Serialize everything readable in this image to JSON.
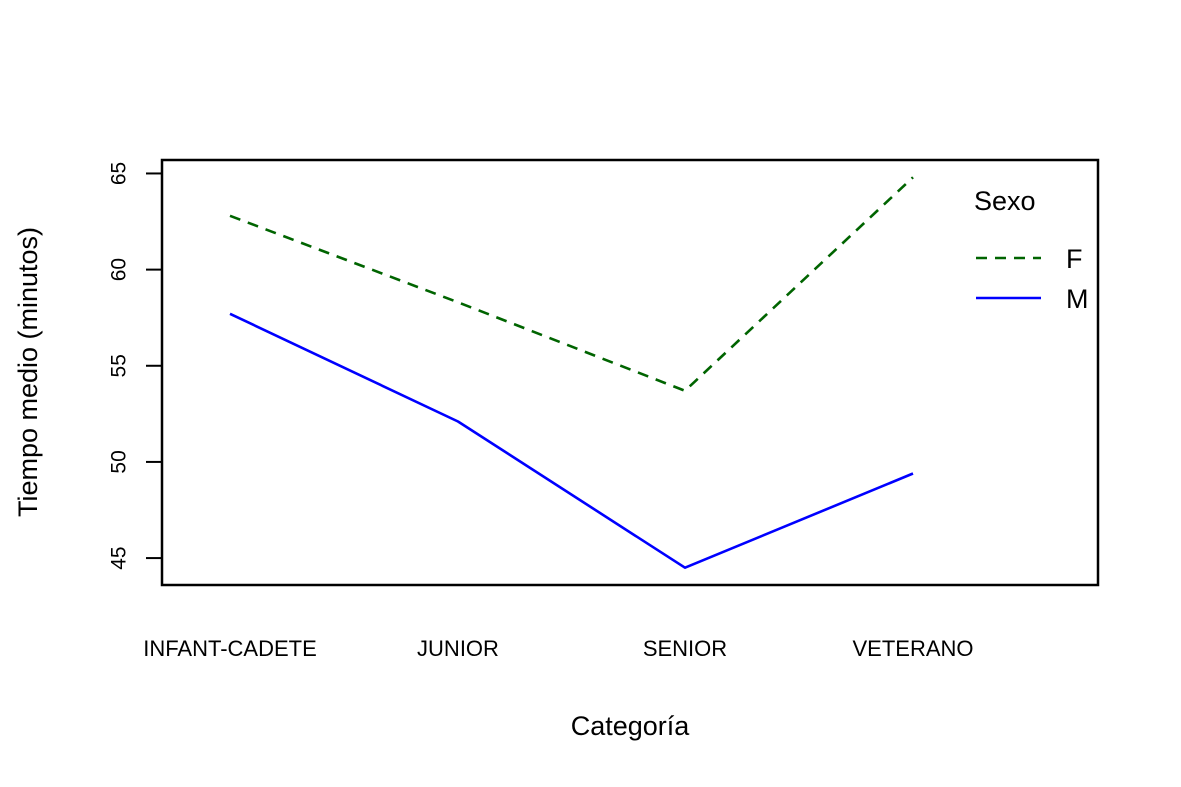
{
  "chart_data": {
    "type": "line",
    "categories": [
      "INFANT-CADETE",
      "JUNIOR",
      "SENIOR",
      "VETERANO"
    ],
    "series": [
      {
        "name": "F",
        "values": [
          62.8,
          58.3,
          53.7,
          64.8
        ],
        "color": "#006400",
        "line_style": "dashed"
      },
      {
        "name": "M",
        "values": [
          57.7,
          52.1,
          44.5,
          49.4
        ],
        "color": "#0000FF",
        "line_style": "solid"
      }
    ],
    "xlabel": "Categoría",
    "ylabel": "Tiempo medio (minutos)",
    "ylim": [
      43.6,
      65.7
    ],
    "yticks": [
      45,
      50,
      55,
      60,
      65
    ],
    "legend": {
      "title": "Sexo",
      "placement": "top-right"
    },
    "grid": false
  }
}
